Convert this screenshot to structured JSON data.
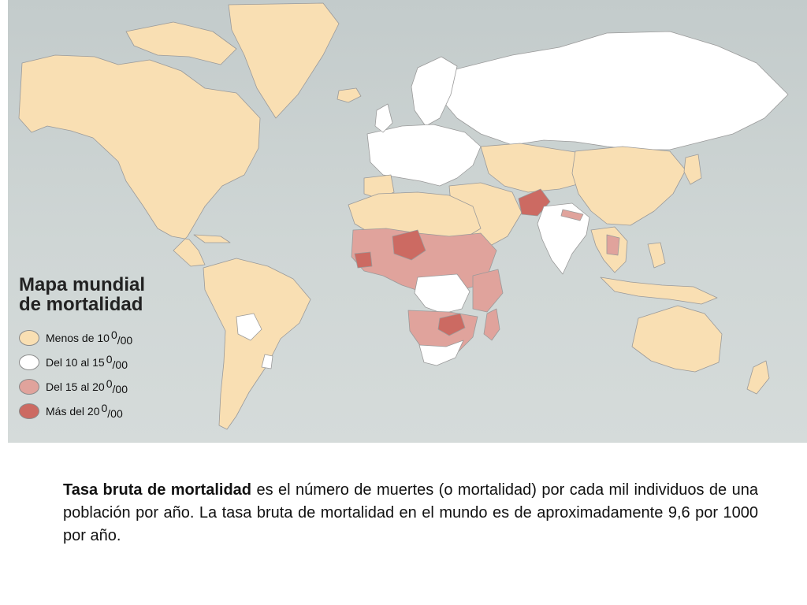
{
  "map": {
    "title_line1": "Mapa mundial",
    "title_line2": "de mortalidad",
    "colors": {
      "ocean": "#cbd3d2",
      "low": "#f9dfb3",
      "medium": "#ffffff",
      "high": "#e0a39c",
      "very_high": "#cc6a62",
      "border": "#9a9a9a"
    },
    "legend": [
      {
        "label": "Menos de 10",
        "unit_sup": "0",
        "unit": "/00",
        "color": "#f9dfb3",
        "icon": "circle-swatch"
      },
      {
        "label": "Del 10 al 15",
        "unit_sup": "0",
        "unit": "/00",
        "color": "#ffffff",
        "icon": "circle-swatch"
      },
      {
        "label": "Del 15 al 20",
        "unit_sup": "0",
        "unit": "/00",
        "color": "#e0a39c",
        "icon": "circle-swatch"
      },
      {
        "label": "Más del 20",
        "unit_sup": "0",
        "unit": "/00",
        "color": "#cc6a62",
        "icon": "circle-swatch"
      }
    ]
  },
  "caption": {
    "term": "Tasa bruta de mortalidad",
    "text": " es el número de muertes (o mortalidad) por cada mil individuos de una población por año. La tasa bruta de mortalidad en el mundo es de aproximadamente 9,6 por 1000 por año."
  }
}
